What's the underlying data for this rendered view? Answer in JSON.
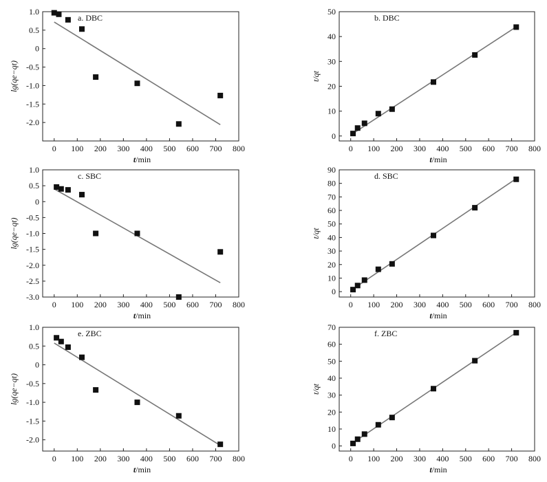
{
  "chart_data": [
    {
      "type": "scatter",
      "title": "a. DBC",
      "xlabel_italic": "t",
      "xlabel_unit": "/min",
      "ylabel": "lg(qe−qt)",
      "xlim": [
        -50,
        800
      ],
      "ylim": [
        -2.5,
        1.0
      ],
      "xticks": [
        0,
        100,
        200,
        300,
        400,
        500,
        600,
        700,
        800
      ],
      "yticks": [
        1.0,
        0.5,
        0,
        -0.5,
        -1.0,
        -1.5,
        -2.0
      ],
      "ytick_labels": [
        "1.0",
        "0.5",
        "0",
        "-0.5",
        "-1.0",
        "-1.5",
        "-2.0"
      ],
      "points": [
        [
          0,
          0.97
        ],
        [
          20,
          0.93
        ],
        [
          60,
          0.78
        ],
        [
          120,
          0.53
        ],
        [
          180,
          -0.77
        ],
        [
          360,
          -0.94
        ],
        [
          540,
          -2.04
        ],
        [
          720,
          -1.27
        ]
      ],
      "fit_line": [
        [
          0,
          0.72
        ],
        [
          720,
          -2.06
        ]
      ],
      "grid": false,
      "marker_color": "#111111",
      "line_color": "#777777"
    },
    {
      "type": "scatter",
      "title": "b. DBC",
      "xlabel_italic": "t",
      "xlabel_unit": "/min",
      "ylabel": "t/qt",
      "xlim": [
        -50,
        800
      ],
      "ylim": [
        -2,
        50
      ],
      "xticks": [
        0,
        100,
        200,
        300,
        400,
        500,
        600,
        700,
        800
      ],
      "yticks": [
        0,
        10,
        20,
        30,
        40,
        50
      ],
      "ytick_labels": [
        "0",
        "10",
        "20",
        "30",
        "40",
        "50"
      ],
      "points": [
        [
          10,
          1.0
        ],
        [
          30,
          3.2
        ],
        [
          60,
          5.1
        ],
        [
          120,
          9.0
        ],
        [
          180,
          10.8
        ],
        [
          360,
          21.7
        ],
        [
          540,
          32.6
        ],
        [
          720,
          43.8
        ]
      ],
      "fit_line": [
        [
          0,
          0.4
        ],
        [
          720,
          43.9
        ]
      ],
      "grid": false,
      "marker_color": "#111111",
      "line_color": "#777777"
    },
    {
      "type": "scatter",
      "title": "c. SBC",
      "xlabel_italic": "t",
      "xlabel_unit": "/min",
      "ylabel": "lg(qe−qt)",
      "xlim": [
        -50,
        800
      ],
      "ylim": [
        -3.0,
        1.0
      ],
      "xticks": [
        0,
        100,
        200,
        300,
        400,
        500,
        600,
        700,
        800
      ],
      "yticks": [
        1.0,
        0.5,
        0,
        -0.5,
        -1.0,
        -1.5,
        -2.0,
        -2.5,
        -3.0
      ],
      "ytick_labels": [
        "1.0",
        "0.5",
        "0",
        "-0.5",
        "-1.0",
        "-1.5",
        "-2.0",
        "-2.5",
        "-3.0"
      ],
      "points": [
        [
          10,
          0.46
        ],
        [
          30,
          0.4
        ],
        [
          60,
          0.37
        ],
        [
          120,
          0.22
        ],
        [
          180,
          -1.0
        ],
        [
          360,
          -1.0
        ],
        [
          540,
          -3.0
        ],
        [
          720,
          -1.58
        ]
      ],
      "fit_line": [
        [
          0,
          0.4
        ],
        [
          720,
          -2.55
        ]
      ],
      "grid": false,
      "marker_color": "#111111",
      "line_color": "#777777"
    },
    {
      "type": "scatter",
      "title": "d. SBC",
      "xlabel_italic": "t",
      "xlabel_unit": "/min",
      "ylabel": "t/qt",
      "xlim": [
        -50,
        800
      ],
      "ylim": [
        -4,
        90
      ],
      "xticks": [
        0,
        100,
        200,
        300,
        400,
        500,
        600,
        700,
        800
      ],
      "yticks": [
        0,
        10,
        20,
        30,
        40,
        50,
        60,
        70,
        80,
        90
      ],
      "ytick_labels": [
        "0",
        "10",
        "20",
        "30",
        "40",
        "50",
        "60",
        "70",
        "80",
        "90"
      ],
      "points": [
        [
          10,
          1.5
        ],
        [
          30,
          4.5
        ],
        [
          60,
          8.5
        ],
        [
          120,
          16.5
        ],
        [
          180,
          20.5
        ],
        [
          360,
          41.5
        ],
        [
          540,
          62.0
        ],
        [
          720,
          83.0
        ]
      ],
      "fit_line": [
        [
          0,
          0.8
        ],
        [
          720,
          83.5
        ]
      ],
      "grid": false,
      "marker_color": "#111111",
      "line_color": "#777777"
    },
    {
      "type": "scatter",
      "title": "e. ZBC",
      "xlabel_italic": "t",
      "xlabel_unit": "/min",
      "ylabel": "lg(qe−qt)",
      "xlim": [
        -50,
        800
      ],
      "ylim": [
        -2.3,
        1.0
      ],
      "xticks": [
        0,
        100,
        200,
        300,
        400,
        500,
        600,
        700,
        800
      ],
      "yticks": [
        1.0,
        0.5,
        0,
        -0.5,
        -1.0,
        -1.5,
        -2.0
      ],
      "ytick_labels": [
        "1.0",
        "0.5",
        "0",
        "-0.5",
        "-1.0",
        "-1.5",
        "-2.0"
      ],
      "points": [
        [
          10,
          0.72
        ],
        [
          30,
          0.62
        ],
        [
          60,
          0.47
        ],
        [
          120,
          0.2
        ],
        [
          180,
          -0.67
        ],
        [
          360,
          -1.0
        ],
        [
          540,
          -1.36
        ],
        [
          720,
          -2.12
        ]
      ],
      "fit_line": [
        [
          0,
          0.58
        ],
        [
          720,
          -2.15
        ]
      ],
      "grid": false,
      "marker_color": "#111111",
      "line_color": "#777777"
    },
    {
      "type": "scatter",
      "title": "f. ZBC",
      "xlabel_italic": "t",
      "xlabel_unit": "/min",
      "ylabel": "t/qt",
      "xlim": [
        -50,
        800
      ],
      "ylim": [
        -3,
        70
      ],
      "xticks": [
        0,
        100,
        200,
        300,
        400,
        500,
        600,
        700,
        800
      ],
      "yticks": [
        0,
        10,
        20,
        30,
        40,
        50,
        60,
        70
      ],
      "ytick_labels": [
        "0",
        "10",
        "20",
        "30",
        "40",
        "50",
        "60",
        "70"
      ],
      "points": [
        [
          10,
          1.5
        ],
        [
          30,
          4.0
        ],
        [
          60,
          7.0
        ],
        [
          120,
          12.5
        ],
        [
          180,
          16.8
        ],
        [
          360,
          33.8
        ],
        [
          540,
          50.3
        ],
        [
          720,
          66.8
        ]
      ],
      "fit_line": [
        [
          0,
          1.0
        ],
        [
          720,
          66.9
        ]
      ],
      "grid": false,
      "marker_color": "#111111",
      "line_color": "#777777"
    }
  ]
}
